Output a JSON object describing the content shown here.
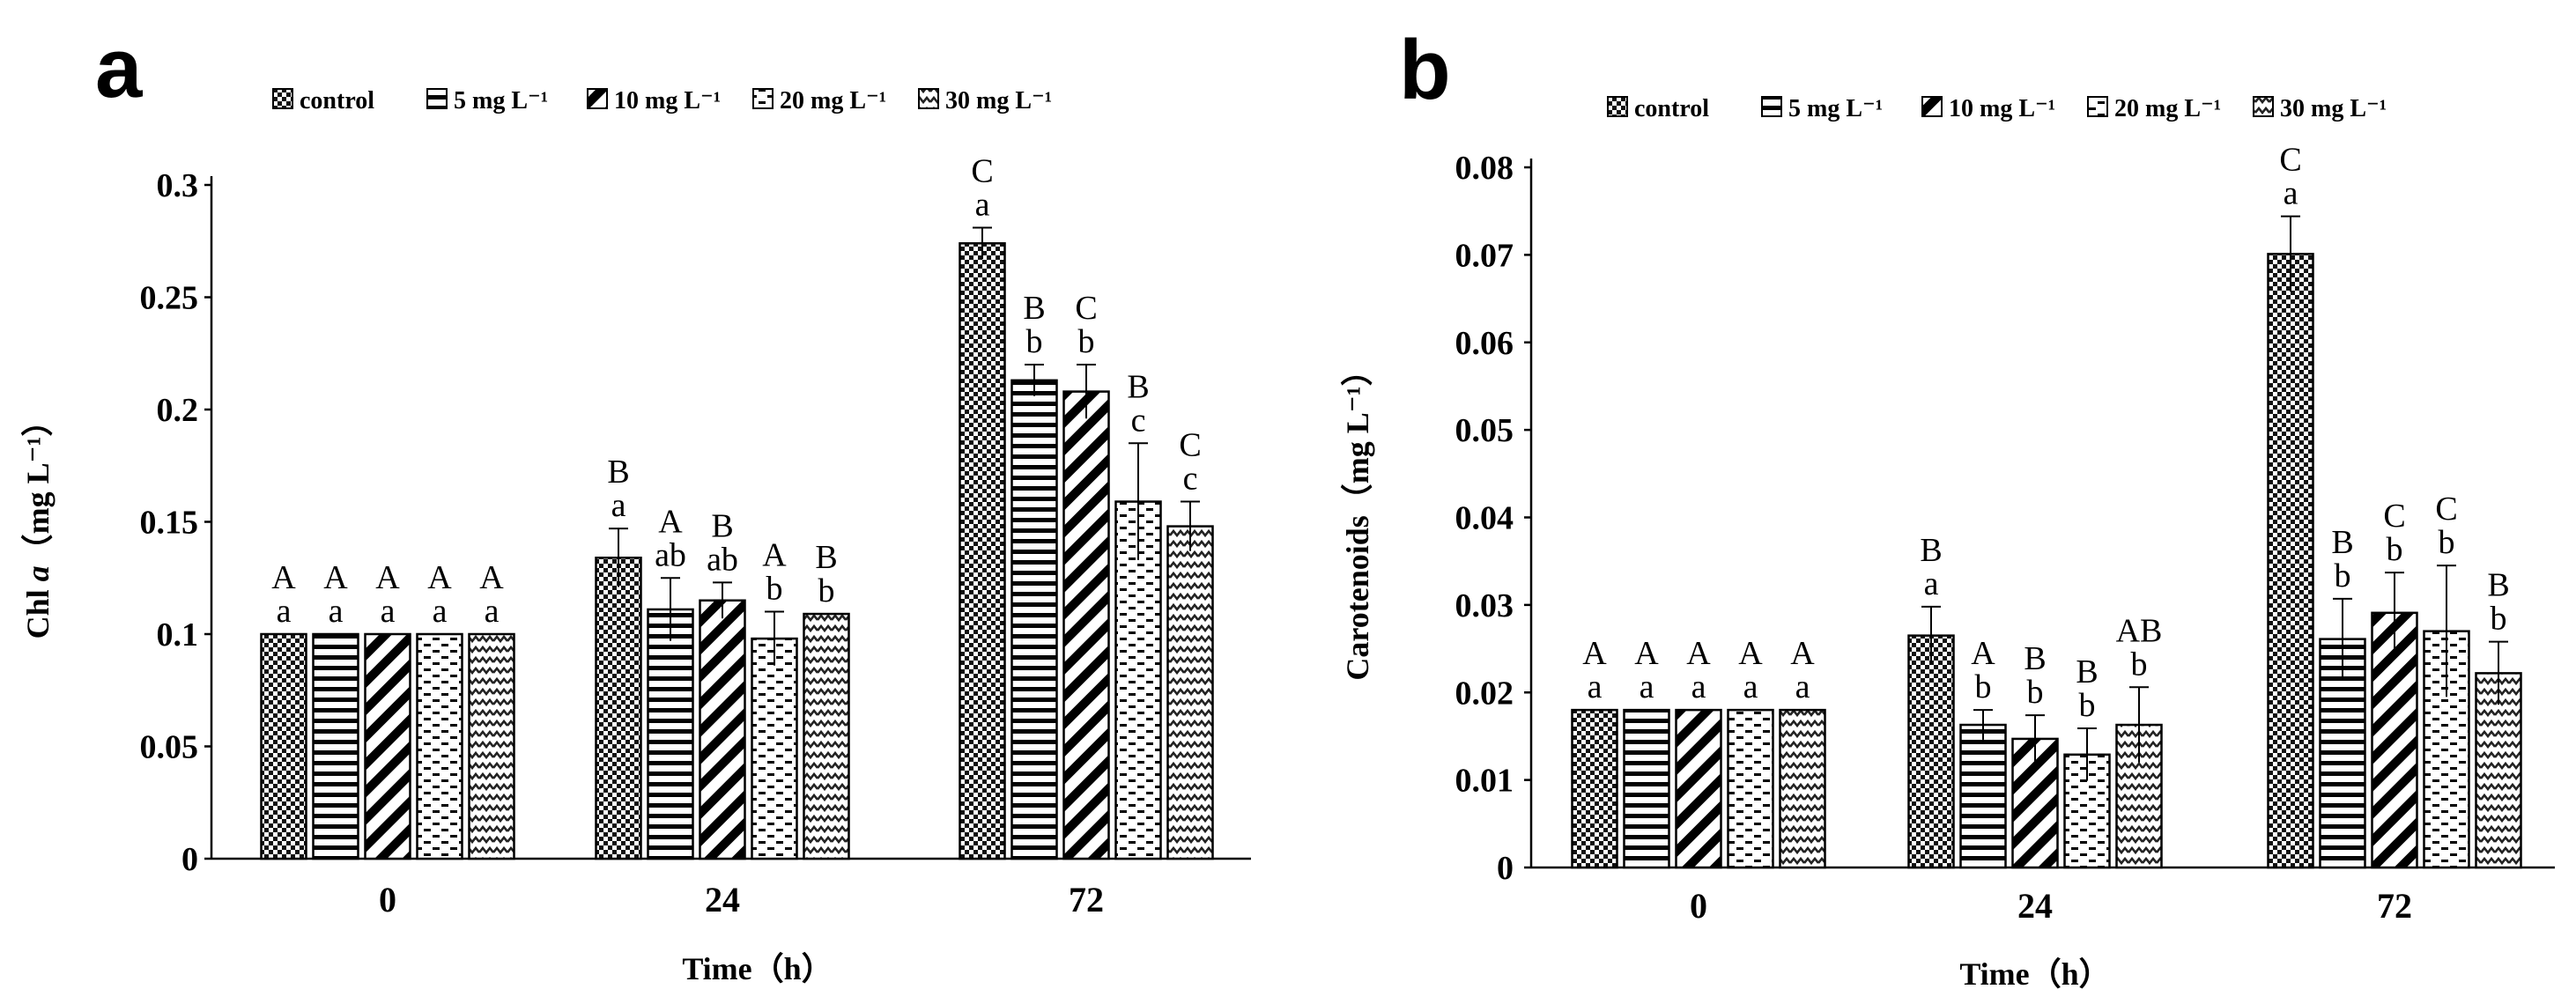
{
  "palette": {
    "ink": "#000000",
    "paper": "#ffffff"
  },
  "legend": {
    "items": [
      {
        "label": "control",
        "pattern": "checker-pattern"
      },
      {
        "label": "5 mg L⁻¹",
        "pattern": "horizontal-lines-pattern"
      },
      {
        "label": "10 mg L⁻¹",
        "pattern": "diagonal-lines-pattern"
      },
      {
        "label": "20 mg L⁻¹",
        "pattern": "dashed-lines-pattern"
      },
      {
        "label": "30 mg L⁻¹",
        "pattern": "zigzag-pattern"
      }
    ]
  },
  "chart_data": [
    {
      "panel": "a",
      "type": "bar",
      "title": "",
      "xlabel": "Time（h）",
      "ylabel_main": "Chl ",
      "ylabel_italic": "a",
      "ylabel_unit": "（mg L⁻¹）",
      "categories": [
        "0",
        "24",
        "72"
      ],
      "ylim": [
        0,
        0.3
      ],
      "yticks": [
        0,
        0.05,
        0.1,
        0.15,
        0.2,
        0.25,
        0.3
      ],
      "ytick_labels": [
        "0",
        "0.05",
        "0.1",
        "0.15",
        "0.2",
        "0.25",
        "0.3"
      ],
      "series": [
        {
          "name": "control",
          "values": [
            0.1,
            0.134,
            0.274
          ],
          "errors": [
            0,
            0.013,
            0.007
          ],
          "upper_labels": [
            "A",
            "B",
            "C"
          ],
          "lower_labels": [
            "a",
            "a",
            "a"
          ]
        },
        {
          "name": "5 mg L⁻¹",
          "values": [
            0.1,
            0.111,
            0.213
          ],
          "errors": [
            0,
            0.014,
            0.007
          ],
          "upper_labels": [
            "A",
            "A",
            "B"
          ],
          "lower_labels": [
            "a",
            "ab",
            "b"
          ]
        },
        {
          "name": "10 mg L⁻¹",
          "values": [
            0.1,
            0.115,
            0.208
          ],
          "errors": [
            0,
            0.008,
            0.012
          ],
          "upper_labels": [
            "A",
            "B",
            "C"
          ],
          "lower_labels": [
            "a",
            "ab",
            "b"
          ]
        },
        {
          "name": "20 mg L⁻¹",
          "values": [
            0.1,
            0.098,
            0.159
          ],
          "errors": [
            0,
            0.012,
            0.026
          ],
          "upper_labels": [
            "A",
            "A",
            "B"
          ],
          "lower_labels": [
            "a",
            "b",
            "c"
          ]
        },
        {
          "name": "30 mg L⁻¹",
          "values": [
            0.1,
            0.109,
            0.148
          ],
          "errors": [
            0,
            0,
            0.011
          ],
          "upper_labels": [
            "A",
            "B",
            "C"
          ],
          "lower_labels": [
            "a",
            "b",
            "c"
          ]
        }
      ]
    },
    {
      "panel": "b",
      "type": "bar",
      "title": "",
      "xlabel": "Time（h）",
      "ylabel_main": "Carotenoids",
      "ylabel_italic": "",
      "ylabel_unit": "（mg L⁻¹）",
      "categories": [
        "0",
        "24",
        "72"
      ],
      "ylim": [
        0,
        0.08
      ],
      "yticks": [
        0,
        0.01,
        0.02,
        0.03,
        0.04,
        0.05,
        0.06,
        0.07,
        0.08
      ],
      "ytick_labels": [
        "0",
        "0.01",
        "0.02",
        "0.03",
        "0.04",
        "0.05",
        "0.06",
        "0.07",
        "0.08"
      ],
      "series": [
        {
          "name": "control",
          "values": [
            0.018,
            0.0265,
            0.0701
          ],
          "errors": [
            0,
            0.0033,
            0.0043
          ],
          "upper_labels": [
            "A",
            "B",
            "C"
          ],
          "lower_labels": [
            "a",
            "a",
            "a"
          ]
        },
        {
          "name": "5 mg L⁻¹",
          "values": [
            0.018,
            0.0163,
            0.0261
          ],
          "errors": [
            0,
            0.0017,
            0.0046
          ],
          "upper_labels": [
            "A",
            "A",
            "B"
          ],
          "lower_labels": [
            "a",
            "b",
            "b"
          ]
        },
        {
          "name": "10 mg L⁻¹",
          "values": [
            0.018,
            0.0147,
            0.0291
          ],
          "errors": [
            0,
            0.0027,
            0.0046
          ],
          "upper_labels": [
            "A",
            "B",
            "C"
          ],
          "lower_labels": [
            "a",
            "b",
            "b"
          ]
        },
        {
          "name": "20 mg L⁻¹",
          "values": [
            0.018,
            0.0129,
            0.027
          ],
          "errors": [
            0,
            0.003,
            0.0075
          ],
          "upper_labels": [
            "A",
            "B",
            "C"
          ],
          "lower_labels": [
            "a",
            "b",
            "b"
          ]
        },
        {
          "name": "30 mg L⁻¹",
          "values": [
            0.018,
            0.0163,
            0.0222
          ],
          "errors": [
            0,
            0.0043,
            0.0036
          ],
          "upper_labels": [
            "A",
            "AB",
            "B"
          ],
          "lower_labels": [
            "a",
            "b",
            "b"
          ]
        }
      ]
    }
  ]
}
